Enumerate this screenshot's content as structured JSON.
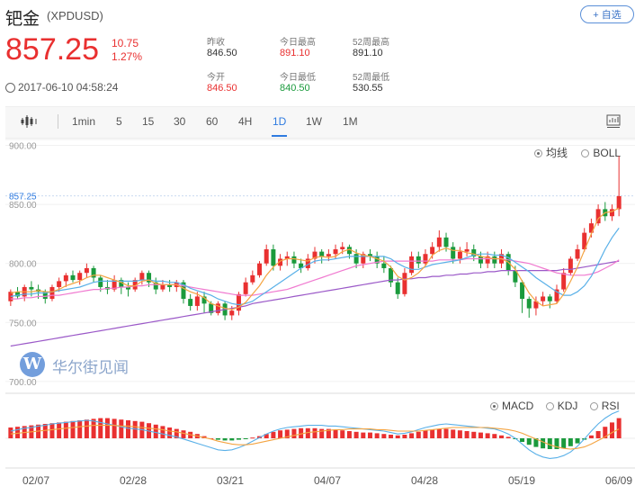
{
  "header": {
    "title": "钯金",
    "ticker": "(XPDUSD)",
    "fav_label": "+ 自选",
    "price": "857.25",
    "change": "10.75",
    "change_pct": "1.27%",
    "time": "2017-06-10 04:58:24"
  },
  "stats": {
    "prev_close": {
      "label": "昨收",
      "value": "846.50"
    },
    "open": {
      "label": "今开",
      "value": "846.50"
    },
    "high": {
      "label": "今日最高",
      "value": "891.10"
    },
    "low": {
      "label": "今日最低",
      "value": "840.50"
    },
    "w52_high": {
      "label": "52周最高",
      "value": "891.10"
    },
    "w52_low": {
      "label": "52周最低",
      "value": "530.55"
    }
  },
  "tabs": [
    "1min",
    "5",
    "15",
    "30",
    "60",
    "4H",
    "1D",
    "1W",
    "1M"
  ],
  "active_tab": "1D",
  "main_legend": {
    "ma_label": "均线",
    "boll_label": "BOLL",
    "selected": "均线"
  },
  "sub_legend": {
    "macd_label": "MACD",
    "kdj_label": "KDJ",
    "rsi_label": "RSI",
    "selected": "MACD"
  },
  "watermark": {
    "logo": "W",
    "text": "华尔街见闻"
  },
  "colors": {
    "up": "#e93030",
    "down": "#1a9a3c",
    "ma5": "#f4a442",
    "ma10": "#59b0e8",
    "ma20": "#f07ad0",
    "ma60": "#9b59c8",
    "dif": "#59b0e8",
    "dea": "#f4a442",
    "accent": "#2f7be0"
  },
  "chart_data": {
    "type": "candlestick",
    "ylabels": [
      "900.00",
      "850.00",
      "800.00",
      "750.00",
      "700.00"
    ],
    "ylim": [
      690,
      905
    ],
    "last_price_label": "857.25",
    "xlabels": [
      "02/07",
      "02/28",
      "03/21",
      "04/07",
      "04/28",
      "05/19",
      "06/09"
    ],
    "candles": [
      [
        768,
        776,
        778,
        764
      ],
      [
        776,
        772,
        780,
        770
      ],
      [
        772,
        780,
        782,
        768
      ],
      [
        780,
        778,
        785,
        772
      ],
      [
        778,
        776,
        782,
        770
      ],
      [
        776,
        770,
        778,
        766
      ],
      [
        770,
        780,
        782,
        768
      ],
      [
        780,
        785,
        788,
        776
      ],
      [
        785,
        790,
        792,
        780
      ],
      [
        790,
        786,
        794,
        784
      ],
      [
        786,
        792,
        794,
        782
      ],
      [
        792,
        796,
        800,
        788
      ],
      [
        796,
        788,
        798,
        784
      ],
      [
        788,
        780,
        790,
        776
      ],
      [
        780,
        778,
        786,
        774
      ],
      [
        778,
        786,
        790,
        776
      ],
      [
        786,
        780,
        788,
        774
      ],
      [
        780,
        778,
        784,
        772
      ],
      [
        778,
        786,
        788,
        776
      ],
      [
        786,
        792,
        794,
        782
      ],
      [
        792,
        784,
        794,
        780
      ],
      [
        784,
        778,
        788,
        774
      ],
      [
        778,
        782,
        786,
        776
      ],
      [
        782,
        780,
        786,
        776
      ],
      [
        780,
        784,
        786,
        776
      ],
      [
        784,
        770,
        786,
        766
      ],
      [
        770,
        764,
        774,
        760
      ],
      [
        764,
        772,
        776,
        760
      ],
      [
        772,
        766,
        776,
        758
      ],
      [
        766,
        758,
        768,
        756
      ],
      [
        758,
        766,
        768,
        756
      ],
      [
        766,
        756,
        768,
        752
      ],
      [
        756,
        760,
        764,
        752
      ],
      [
        760,
        774,
        776,
        756
      ],
      [
        774,
        784,
        788,
        772
      ],
      [
        784,
        790,
        794,
        782
      ],
      [
        790,
        800,
        802,
        788
      ],
      [
        800,
        812,
        816,
        798
      ],
      [
        812,
        798,
        816,
        794
      ],
      [
        798,
        804,
        808,
        794
      ],
      [
        804,
        806,
        810,
        798
      ],
      [
        806,
        800,
        810,
        796
      ],
      [
        800,
        796,
        804,
        792
      ],
      [
        796,
        804,
        808,
        794
      ],
      [
        804,
        810,
        814,
        800
      ],
      [
        810,
        806,
        812,
        800
      ],
      [
        806,
        808,
        812,
        802
      ],
      [
        808,
        812,
        816,
        804
      ],
      [
        812,
        814,
        818,
        808
      ],
      [
        814,
        808,
        816,
        804
      ],
      [
        808,
        800,
        812,
        796
      ],
      [
        800,
        808,
        810,
        796
      ],
      [
        808,
        806,
        812,
        802
      ],
      [
        806,
        800,
        810,
        796
      ],
      [
        800,
        796,
        806,
        792
      ],
      [
        796,
        784,
        798,
        780
      ],
      [
        784,
        774,
        788,
        770
      ],
      [
        774,
        792,
        796,
        772
      ],
      [
        792,
        806,
        810,
        790
      ],
      [
        806,
        800,
        810,
        796
      ],
      [
        800,
        808,
        812,
        798
      ],
      [
        808,
        814,
        818,
        804
      ],
      [
        814,
        822,
        828,
        810
      ],
      [
        822,
        814,
        826,
        810
      ],
      [
        814,
        804,
        818,
        800
      ],
      [
        804,
        810,
        814,
        800
      ],
      [
        810,
        812,
        818,
        806
      ],
      [
        812,
        806,
        816,
        802
      ],
      [
        806,
        800,
        810,
        796
      ],
      [
        800,
        806,
        810,
        796
      ],
      [
        806,
        800,
        810,
        796
      ],
      [
        800,
        808,
        812,
        796
      ],
      [
        808,
        794,
        810,
        790
      ],
      [
        794,
        784,
        798,
        780
      ],
      [
        784,
        770,
        786,
        758
      ],
      [
        770,
        762,
        772,
        754
      ],
      [
        762,
        768,
        772,
        756
      ],
      [
        768,
        772,
        776,
        764
      ],
      [
        772,
        768,
        774,
        762
      ],
      [
        768,
        778,
        782,
        766
      ],
      [
        778,
        792,
        796,
        776
      ],
      [
        792,
        804,
        806,
        790
      ],
      [
        804,
        812,
        816,
        802
      ],
      [
        812,
        826,
        830,
        810
      ],
      [
        826,
        834,
        838,
        822
      ],
      [
        834,
        846,
        850,
        832
      ],
      [
        846,
        840,
        852,
        836
      ],
      [
        840,
        846,
        850,
        836
      ],
      [
        846,
        857,
        891,
        840
      ]
    ],
    "ma5": [
      775,
      776,
      776,
      776,
      777,
      776,
      776,
      778,
      781,
      783,
      785,
      788,
      790,
      790,
      788,
      786,
      784,
      781,
      781,
      785,
      786,
      783,
      782,
      782,
      782,
      779,
      776,
      774,
      771,
      766,
      764,
      762,
      761,
      763,
      767,
      774,
      781,
      790,
      797,
      802,
      804,
      804,
      803,
      802,
      805,
      806,
      805,
      806,
      810,
      812,
      809,
      807,
      806,
      804,
      802,
      797,
      789,
      786,
      788,
      792,
      798,
      807,
      811,
      813,
      811,
      811,
      809,
      808,
      806,
      805,
      804,
      804,
      801,
      795,
      785,
      775,
      768,
      764,
      765,
      766,
      774,
      785,
      797,
      811,
      825,
      838,
      843,
      844,
      847
    ],
    "ma10": [
      772,
      773,
      774,
      774,
      775,
      775,
      776,
      777,
      778,
      779,
      780,
      782,
      784,
      785,
      785,
      785,
      785,
      785,
      785,
      786,
      786,
      785,
      785,
      784,
      784,
      782,
      779,
      777,
      775,
      773,
      770,
      768,
      766,
      765,
      766,
      768,
      772,
      776,
      780,
      784,
      788,
      792,
      796,
      799,
      802,
      803,
      803,
      804,
      805,
      806,
      806,
      806,
      806,
      806,
      806,
      804,
      800,
      797,
      795,
      795,
      797,
      799,
      800,
      801,
      802,
      803,
      805,
      807,
      808,
      808,
      807,
      807,
      805,
      801,
      797,
      793,
      788,
      784,
      780,
      776,
      773,
      773,
      776,
      781,
      789,
      800,
      812,
      822,
      830
    ],
    "ma20": [
      770,
      770,
      771,
      771,
      772,
      772,
      773,
      773,
      774,
      775,
      776,
      777,
      778,
      778,
      779,
      779,
      780,
      780,
      781,
      781,
      782,
      782,
      782,
      782,
      782,
      781,
      780,
      779,
      778,
      777,
      776,
      775,
      774,
      773,
      773,
      773,
      774,
      775,
      776,
      777,
      778,
      780,
      782,
      784,
      786,
      788,
      790,
      792,
      794,
      796,
      798,
      799,
      800,
      801,
      802,
      802,
      802,
      802,
      802,
      802,
      802,
      802,
      803,
      803,
      803,
      803,
      804,
      804,
      804,
      804,
      804,
      804,
      803,
      802,
      801,
      800,
      798,
      796,
      794,
      792,
      791,
      790,
      790,
      790,
      791,
      793,
      796,
      799,
      803
    ],
    "ma60": [
      730,
      731,
      732,
      733,
      734,
      735,
      736,
      737,
      738,
      739,
      740,
      741,
      742,
      743,
      744,
      745,
      746,
      747,
      748,
      749,
      750,
      751,
      752,
      753,
      754,
      755,
      756,
      757,
      758,
      759,
      760,
      761,
      762,
      763,
      764,
      766,
      767,
      768,
      769,
      770,
      771,
      772,
      773,
      774,
      775,
      776,
      777,
      778,
      779,
      780,
      781,
      782,
      783,
      784,
      785,
      786,
      786,
      787,
      787,
      788,
      788,
      789,
      789,
      790,
      790,
      791,
      791,
      792,
      792,
      793,
      793,
      794,
      794,
      794,
      794,
      794,
      794,
      794,
      794,
      794,
      795,
      795,
      796,
      797,
      798,
      799,
      800,
      801,
      802
    ],
    "macd": [
      1.5,
      1.6,
      1.7,
      1.8,
      1.9,
      2.0,
      2.1,
      2.2,
      2.3,
      2.4,
      2.5,
      2.6,
      2.7,
      2.8,
      2.8,
      2.7,
      2.6,
      2.5,
      2.4,
      2.3,
      2.1,
      1.9,
      1.7,
      1.5,
      1.3,
      1.1,
      0.9,
      0.6,
      0.3,
      0.0,
      -0.2,
      -0.3,
      -0.3,
      -0.2,
      -0.1,
      0.1,
      0.3,
      0.6,
      0.9,
      1.1,
      1.2,
      1.3,
      1.4,
      1.4,
      1.4,
      1.3,
      1.3,
      1.2,
      1.1,
      1.0,
      0.9,
      0.8,
      0.8,
      0.7,
      0.6,
      0.5,
      0.4,
      0.5,
      0.7,
      0.9,
      1.1,
      1.2,
      1.3,
      1.3,
      1.2,
      1.1,
      1.0,
      0.9,
      0.8,
      0.7,
      0.6,
      0.4,
      0.2,
      -0.1,
      -0.5,
      -0.9,
      -1.2,
      -1.4,
      -1.5,
      -1.5,
      -1.4,
      -1.1,
      -0.7,
      -0.2,
      0.4,
      1.0,
      1.6,
      2.2,
      2.8
    ],
    "dif": [
      1.0,
      1.2,
      1.4,
      1.5,
      1.7,
      1.8,
      2.0,
      2.1,
      2.2,
      2.3,
      2.4,
      2.5,
      2.4,
      2.2,
      2.0,
      1.8,
      1.6,
      1.4,
      1.3,
      1.2,
      1.0,
      0.8,
      0.6,
      0.4,
      0.2,
      -0.1,
      -0.4,
      -0.7,
      -1.0,
      -1.3,
      -1.6,
      -1.7,
      -1.6,
      -1.3,
      -0.9,
      -0.4,
      0.1,
      0.6,
      1.0,
      1.3,
      1.5,
      1.6,
      1.7,
      1.8,
      1.8,
      1.8,
      1.7,
      1.7,
      1.6,
      1.5,
      1.4,
      1.3,
      1.2,
      1.1,
      1.0,
      0.8,
      0.6,
      0.7,
      0.9,
      1.2,
      1.5,
      1.7,
      1.9,
      2.0,
      1.9,
      1.8,
      1.7,
      1.6,
      1.5,
      1.4,
      1.3,
      1.0,
      0.6,
      0.0,
      -0.8,
      -1.6,
      -2.2,
      -2.6,
      -2.8,
      -2.7,
      -2.4,
      -1.9,
      -1.1,
      -0.1,
      1.0,
      2.0,
      2.8,
      3.4,
      3.8
    ],
    "dea": [
      0.6,
      0.7,
      0.8,
      0.9,
      1.0,
      1.1,
      1.2,
      1.3,
      1.4,
      1.5,
      1.6,
      1.7,
      1.8,
      1.8,
      1.8,
      1.8,
      1.7,
      1.7,
      1.6,
      1.5,
      1.4,
      1.3,
      1.2,
      1.0,
      0.9,
      0.7,
      0.5,
      0.3,
      0.1,
      -0.1,
      -0.4,
      -0.6,
      -0.8,
      -0.9,
      -0.9,
      -0.8,
      -0.6,
      -0.4,
      -0.2,
      0.0,
      0.2,
      0.4,
      0.6,
      0.8,
      0.9,
      1.0,
      1.1,
      1.2,
      1.2,
      1.3,
      1.3,
      1.3,
      1.3,
      1.2,
      1.2,
      1.1,
      1.0,
      1.0,
      1.0,
      1.0,
      1.1,
      1.2,
      1.3,
      1.4,
      1.5,
      1.5,
      1.5,
      1.5,
      1.5,
      1.5,
      1.4,
      1.3,
      1.2,
      1.0,
      0.7,
      0.3,
      -0.1,
      -0.5,
      -0.9,
      -1.2,
      -1.4,
      -1.5,
      -1.4,
      -1.2,
      -0.8,
      -0.3,
      0.2,
      0.8,
      1.3
    ]
  }
}
